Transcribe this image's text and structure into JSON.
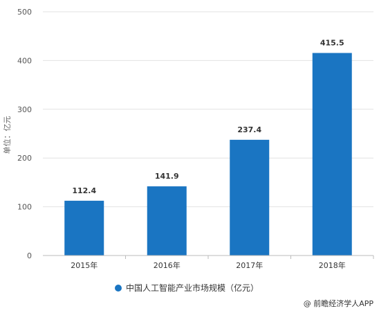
{
  "chart_data": {
    "type": "bar",
    "categories": [
      "2015年",
      "2016年",
      "2017年",
      "2018年"
    ],
    "series": [
      {
        "name": "中国人工智能产业市场规模（亿元）",
        "values": [
          112.4,
          141.9,
          237.4,
          415.5
        ],
        "labels": [
          "112.4",
          "141.9",
          "237.4",
          "415.5"
        ],
        "color": "#1a75c2"
      }
    ],
    "ylabel": "单位：亿元",
    "ylim": [
      0,
      500
    ],
    "yticks": [
      "0",
      "100",
      "200",
      "300",
      "400",
      "500"
    ],
    "ytick_values": [
      0,
      100,
      200,
      300,
      400,
      500
    ],
    "grid": true,
    "legend_position": "bottom-center",
    "legend_label": "中国人工智能产业市场规模（亿元）"
  },
  "watermark": "@ 前瞻经济学人APP"
}
